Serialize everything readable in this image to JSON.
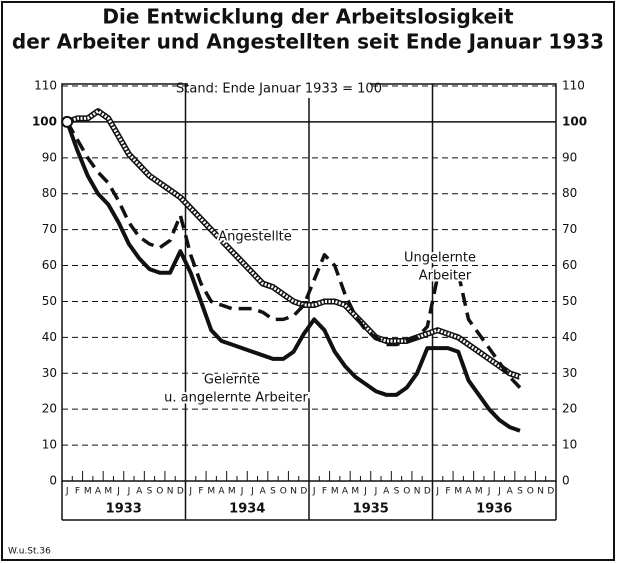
{
  "chart_data": {
    "type": "line",
    "title": [
      "Die Entwicklung der Arbeitslosigkeit",
      "der Arbeiter und Angestellten seit Ende Januar 1933"
    ],
    "subtitle": "Stand: Ende Januar 1933 = 100",
    "categories": [
      "J",
      "F",
      "M",
      "A",
      "M",
      "J",
      "J",
      "A",
      "S",
      "O",
      "N",
      "D",
      "J",
      "F",
      "M",
      "A",
      "M",
      "J",
      "J",
      "A",
      "S",
      "O",
      "N",
      "D",
      "J",
      "F",
      "M",
      "A",
      "M",
      "J",
      "J",
      "A",
      "S",
      "O",
      "N",
      "D",
      "J",
      "F",
      "M",
      "A",
      "M",
      "J",
      "J",
      "A",
      "S",
      "O",
      "N",
      "D"
    ],
    "years": [
      "1933",
      "1934",
      "1935",
      "1936"
    ],
    "series": [
      {
        "name": "Angestellte",
        "color": "#111111",
        "style": "double",
        "values": [
          100,
          101,
          101,
          103,
          101,
          96,
          91,
          88,
          85,
          83,
          81,
          79,
          76,
          73,
          70,
          67,
          64,
          61,
          58,
          55,
          54,
          52,
          50,
          49,
          49,
          50,
          50,
          49,
          46,
          43,
          40,
          39,
          39,
          39,
          40,
          41,
          42,
          41,
          40,
          38,
          36,
          34,
          32,
          30,
          29,
          null,
          null,
          null
        ]
      },
      {
        "name": "Ungelernte Arbeiter",
        "color": "#111111",
        "style": "dashed",
        "values": [
          100,
          95,
          90,
          86,
          83,
          78,
          72,
          68,
          66,
          65,
          67,
          74,
          63,
          55,
          50,
          49,
          48,
          48,
          48,
          47,
          45,
          45,
          46,
          49,
          56,
          63,
          60,
          52,
          46,
          42,
          40,
          38,
          38,
          39,
          40,
          43,
          57,
          57,
          58,
          45,
          41,
          37,
          33,
          29,
          26,
          null,
          null,
          null
        ]
      },
      {
        "name": "Gelernte u. angelernte Arbeiter",
        "color": "#111111",
        "style": "solid",
        "values": [
          100,
          92,
          85,
          80,
          77,
          72,
          66,
          62,
          59,
          58,
          58,
          64,
          58,
          50,
          42,
          39,
          38,
          37,
          36,
          35,
          34,
          34,
          36,
          41,
          45,
          42,
          36,
          32,
          29,
          27,
          25,
          24,
          24,
          26,
          30,
          37,
          37,
          37,
          36,
          28,
          24,
          20,
          17,
          15,
          14,
          null,
          null,
          null
        ]
      }
    ],
    "annotations": [
      [
        "Angestellte"
      ],
      [
        "Ungelernte",
        "Arbeiter"
      ],
      [
        "Gelernte",
        "u. angelernte Arbeiter"
      ]
    ],
    "source": "W.u.St.36",
    "ylim": [
      0,
      110
    ],
    "yticks": [
      0,
      10,
      20,
      30,
      40,
      50,
      60,
      70,
      80,
      90,
      100,
      110
    ],
    "grid": true
  }
}
